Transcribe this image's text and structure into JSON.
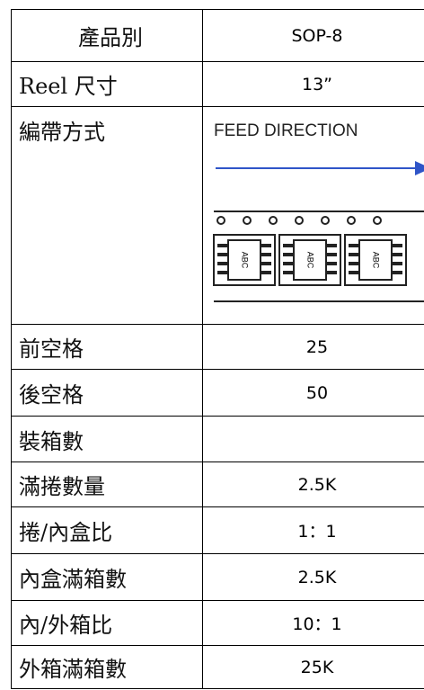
{
  "table": {
    "rows": [
      [
        "產品別",
        "SOP-8"
      ],
      [
        "Reel 尺寸",
        "13”"
      ],
      [
        "編帶方式",
        null
      ],
      [
        "前空格",
        "25"
      ],
      [
        "後空格",
        "50"
      ],
      [
        "裝箱數",
        null
      ],
      [
        "滿捲數量",
        "2.5K"
      ],
      [
        "捲/內盒比",
        "1：1"
      ],
      [
        "內盒滿箱數",
        "2.5K"
      ],
      [
        "內/外箱比",
        "10：1"
      ],
      [
        "外箱滿箱數",
        "25K"
      ]
    ]
  },
  "diagram": {
    "label": "FEED DIRECTION",
    "ic_label": "ABC"
  }
}
